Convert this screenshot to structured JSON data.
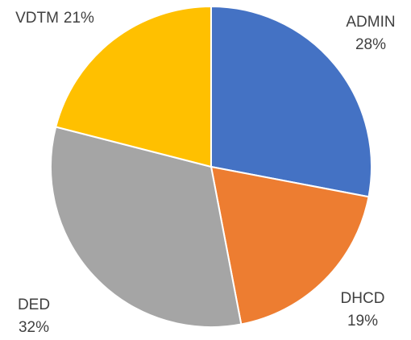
{
  "chart_data": {
    "type": "pie",
    "categories": [
      "ADMIN",
      "DHCD",
      "DED",
      "VDTM"
    ],
    "values": [
      28,
      19,
      32,
      21
    ],
    "value_labels": [
      "28%",
      "19%",
      "32%",
      "21%"
    ],
    "colors": [
      "#4472c4",
      "#ed7d31",
      "#a5a5a5",
      "#ffc000"
    ]
  }
}
